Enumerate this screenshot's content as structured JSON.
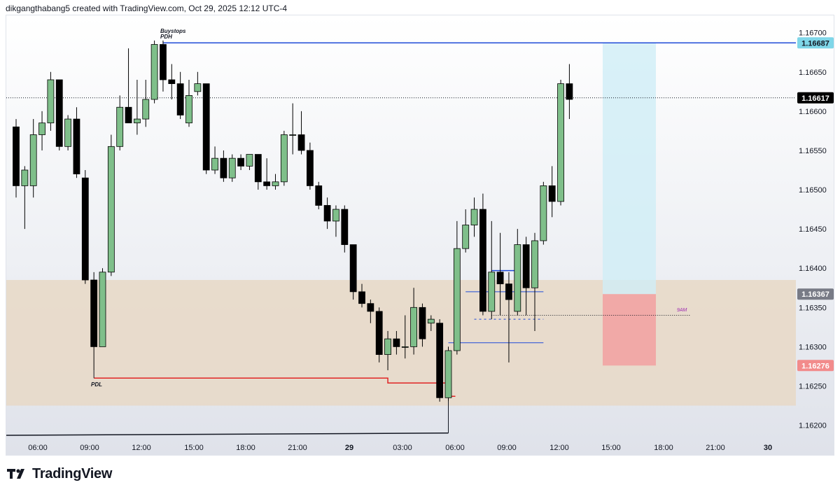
{
  "header": {
    "caption": "dikgangthabang5 created with TradingView.com, Oct 29, 2025 12:12 UTC-4"
  },
  "footer": {
    "brand": "TradingView",
    "logo_icon": "tradingview-logo-icon"
  },
  "colors": {
    "bull_fill": "#7fbf8a",
    "bear_fill": "#000000",
    "candle_border": "#000000",
    "blue_line": "#1f4bd8",
    "red_line": "#e02424",
    "zone_fill": "#e8d8c6",
    "target_zone": "#cfeef6",
    "stop_zone": "#f2a3a3",
    "price_label_target": "#7fd6e8",
    "price_label_current": "#000000",
    "price_label_entry": "#787b86",
    "price_label_stop": "#f28b8b",
    "label_9am": "#9c27b0"
  },
  "chart_data": {
    "type": "candlestick",
    "symbol_timeframe": "30m",
    "y_ticks": [
      "1.16200",
      "1.16250",
      "1.16300",
      "1.16350",
      "1.16400",
      "1.16450",
      "1.16500",
      "1.16550",
      "1.16600",
      "1.16650",
      "1.16700"
    ],
    "x_ticks": [
      "06:00",
      "09:00",
      "12:00",
      "15:00",
      "18:00",
      "21:00",
      "29",
      "03:00",
      "06:00",
      "09:00",
      "12:00",
      "15:00",
      "18:00",
      "21:00",
      "30"
    ],
    "ylim": [
      1.1618,
      1.16722
    ],
    "candles": [
      [
        1.1658,
        1.1659,
        1.1649,
        1.16505
      ],
      [
        1.16505,
        1.1653,
        1.1645,
        1.16525
      ],
      [
        1.16505,
        1.1659,
        1.1649,
        1.1657
      ],
      [
        1.1657,
        1.166,
        1.1655,
        1.16585
      ],
      [
        1.16585,
        1.1665,
        1.16575,
        1.1664
      ],
      [
        1.1664,
        1.1664,
        1.1655,
        1.16555
      ],
      [
        1.16555,
        1.16595,
        1.1655,
        1.1659
      ],
      [
        1.1659,
        1.16605,
        1.16515,
        1.1652
      ],
      [
        1.16515,
        1.16525,
        1.1638,
        1.16385
      ],
      [
        1.16385,
        1.16395,
        1.1627,
        1.163
      ],
      [
        1.163,
        1.164,
        1.163,
        1.16395
      ],
      [
        1.16395,
        1.1657,
        1.1639,
        1.16555
      ],
      [
        1.16555,
        1.1662,
        1.1655,
        1.16605
      ],
      [
        1.16605,
        1.1668,
        1.16585,
        1.16585
      ],
      [
        1.16585,
        1.1664,
        1.1657,
        1.1659
      ],
      [
        1.1659,
        1.1664,
        1.1658,
        1.16615
      ],
      [
        1.16615,
        1.1669,
        1.1661,
        1.16685
      ],
      [
        1.16685,
        1.1669,
        1.16625,
        1.1664
      ],
      [
        1.1664,
        1.1666,
        1.16615,
        1.16635
      ],
      [
        1.16635,
        1.1665,
        1.1659,
        1.16595
      ],
      [
        1.16585,
        1.1664,
        1.1658,
        1.1662
      ],
      [
        1.16625,
        1.1665,
        1.1662,
        1.16635
      ],
      [
        1.16635,
        1.16635,
        1.1652,
        1.16525
      ],
      [
        1.16525,
        1.16555,
        1.1652,
        1.1654
      ],
      [
        1.1654,
        1.1655,
        1.1651,
        1.16515
      ],
      [
        1.16515,
        1.16545,
        1.1651,
        1.1654
      ],
      [
        1.1654,
        1.16545,
        1.16525,
        1.1653
      ],
      [
        1.1653,
        1.16545,
        1.16525,
        1.16545
      ],
      [
        1.16545,
        1.16545,
        1.165,
        1.1651
      ],
      [
        1.1651,
        1.1654,
        1.165,
        1.16505
      ],
      [
        1.16505,
        1.1652,
        1.165,
        1.1651
      ],
      [
        1.1651,
        1.16575,
        1.16505,
        1.1657
      ],
      [
        1.1657,
        1.1661,
        1.16545,
        1.1657
      ],
      [
        1.1657,
        1.166,
        1.16545,
        1.1655
      ],
      [
        1.1655,
        1.1656,
        1.165,
        1.16505
      ],
      [
        1.16505,
        1.1651,
        1.16475,
        1.1648
      ],
      [
        1.1648,
        1.1649,
        1.1645,
        1.1646
      ],
      [
        1.1646,
        1.1648,
        1.1644,
        1.16475
      ],
      [
        1.16475,
        1.1648,
        1.1642,
        1.1643
      ],
      [
        1.1643,
        1.1643,
        1.1636,
        1.1637
      ],
      [
        1.1637,
        1.1638,
        1.1635,
        1.16355
      ],
      [
        1.16355,
        1.1636,
        1.1633,
        1.16345
      ],
      [
        1.16345,
        1.1635,
        1.1628,
        1.1629
      ],
      [
        1.1629,
        1.1632,
        1.1627,
        1.1631
      ],
      [
        1.1631,
        1.1632,
        1.1629,
        1.163
      ],
      [
        1.163,
        1.1634,
        1.16285,
        1.163
      ],
      [
        1.163,
        1.16375,
        1.1629,
        1.1635
      ],
      [
        1.1635,
        1.16355,
        1.163,
        1.1631
      ],
      [
        1.1633,
        1.1634,
        1.1632,
        1.16335
      ],
      [
        1.1633,
        1.16335,
        1.1623,
        1.16235
      ],
      [
        1.16235,
        1.163,
        1.1623,
        1.16295
      ],
      [
        1.16295,
        1.1646,
        1.1629,
        1.16425
      ],
      [
        1.16425,
        1.16475,
        1.1642,
        1.16455
      ],
      [
        1.16455,
        1.1649,
        1.1644,
        1.16475
      ],
      [
        1.16475,
        1.16495,
        1.1634,
        1.16345
      ],
      [
        1.16345,
        1.1646,
        1.16335,
        1.16395
      ],
      [
        1.16395,
        1.16445,
        1.1634,
        1.1638
      ],
      [
        1.1638,
        1.16395,
        1.1628,
        1.1636
      ],
      [
        1.16345,
        1.1645,
        1.1634,
        1.1643
      ],
      [
        1.1643,
        1.1644,
        1.1634,
        1.16375
      ],
      [
        1.16375,
        1.16445,
        1.1632,
        1.16435
      ],
      [
        1.16435,
        1.1651,
        1.1643,
        1.16505
      ],
      [
        1.16505,
        1.1653,
        1.16465,
        1.16485
      ],
      [
        1.16485,
        1.1664,
        1.1648,
        1.16635
      ],
      [
        1.16635,
        1.1666,
        1.1659,
        1.16615
      ]
    ],
    "levels": [
      {
        "label": "Buystops PDH",
        "price": 1.16687,
        "color": "blue"
      },
      {
        "label": "PDL",
        "price": 1.1626,
        "color": "red"
      }
    ],
    "annotations": [
      "Buystops",
      "PDH",
      "PDL",
      "9AM"
    ],
    "price_labels": {
      "target": "1.16687",
      "current": "1.16617",
      "entry": "1.16367",
      "stop": "1.16276"
    },
    "position": {
      "type": "long",
      "entry": 1.16367,
      "target": 1.16687,
      "stop": 1.16276
    },
    "zone": {
      "top": 1.16385,
      "bottom": 1.16225
    },
    "grid": false
  }
}
